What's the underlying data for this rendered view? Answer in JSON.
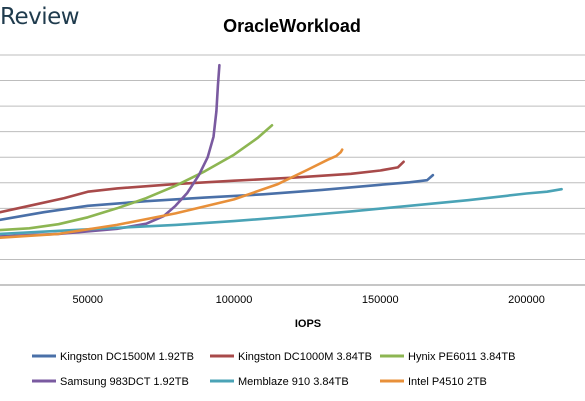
{
  "brand": "Review",
  "chart_data": {
    "type": "line",
    "title": "OracleWorkload",
    "xlabel": "IOPS",
    "ylabel": "",
    "xlim": [
      20000,
      220000
    ],
    "ylim": [
      0,
      9
    ],
    "x_ticks": [
      50000,
      100000,
      150000,
      200000
    ],
    "x_tick_labels": [
      "50000",
      "100000",
      "150000",
      "200000"
    ],
    "y_gridlines": [
      0,
      1,
      2,
      3,
      4,
      5,
      6,
      7,
      8,
      9
    ],
    "y_tick_labels_visible": false,
    "grid": "horizontal",
    "legend_position": "bottom",
    "series": [
      {
        "name": "Kingston DC1500M 1.92TB",
        "color": "#4a70a8",
        "x": [
          20000,
          35000,
          50000,
          70000,
          90000,
          110000,
          130000,
          150000,
          160000,
          166000,
          168000
        ],
        "y": [
          2.55,
          2.85,
          3.1,
          3.28,
          3.42,
          3.55,
          3.72,
          3.92,
          4.02,
          4.1,
          4.3
        ]
      },
      {
        "name": "Kingston DC1000M 3.84TB",
        "color": "#a84a4a",
        "x": [
          20000,
          30000,
          42000,
          50000,
          60000,
          80000,
          100000,
          120000,
          140000,
          150000,
          156000,
          158000
        ],
        "y": [
          2.85,
          3.1,
          3.4,
          3.65,
          3.78,
          3.95,
          4.08,
          4.2,
          4.35,
          4.48,
          4.6,
          4.82
        ]
      },
      {
        "name": "Hynix PE6011 3.84TB",
        "color": "#8db652",
        "x": [
          20000,
          30000,
          40000,
          50000,
          60000,
          70000,
          80000,
          90000,
          100000,
          108000,
          113000
        ],
        "y": [
          2.15,
          2.22,
          2.38,
          2.65,
          3.0,
          3.4,
          3.88,
          4.45,
          5.1,
          5.75,
          6.25
        ]
      },
      {
        "name": "Samsung 983DCT 1.92TB",
        "color": "#7a5aa0",
        "x": [
          20000,
          40000,
          60000,
          70000,
          76000,
          80000,
          84000,
          88000,
          91000,
          93000,
          94000,
          94500,
          95000
        ],
        "y": [
          1.9,
          2.0,
          2.2,
          2.4,
          2.7,
          3.1,
          3.6,
          4.3,
          5.0,
          5.8,
          6.8,
          7.8,
          8.6
        ]
      },
      {
        "name": "Memblaze 910 3.84TB",
        "color": "#4aa3b6",
        "x": [
          20000,
          50000,
          80000,
          100000,
          120000,
          140000,
          160000,
          180000,
          200000,
          207000,
          212000
        ],
        "y": [
          2.0,
          2.18,
          2.35,
          2.5,
          2.68,
          2.88,
          3.1,
          3.32,
          3.58,
          3.65,
          3.75
        ]
      },
      {
        "name": "Intel P4510 2TB",
        "color": "#e8903a",
        "x": [
          20000,
          40000,
          60000,
          80000,
          100000,
          115000,
          125000,
          132000,
          135000,
          136000,
          136500,
          137000
        ],
        "y": [
          1.85,
          2.0,
          2.35,
          2.8,
          3.35,
          3.95,
          4.5,
          4.9,
          5.05,
          5.15,
          5.2,
          5.3
        ]
      }
    ]
  }
}
